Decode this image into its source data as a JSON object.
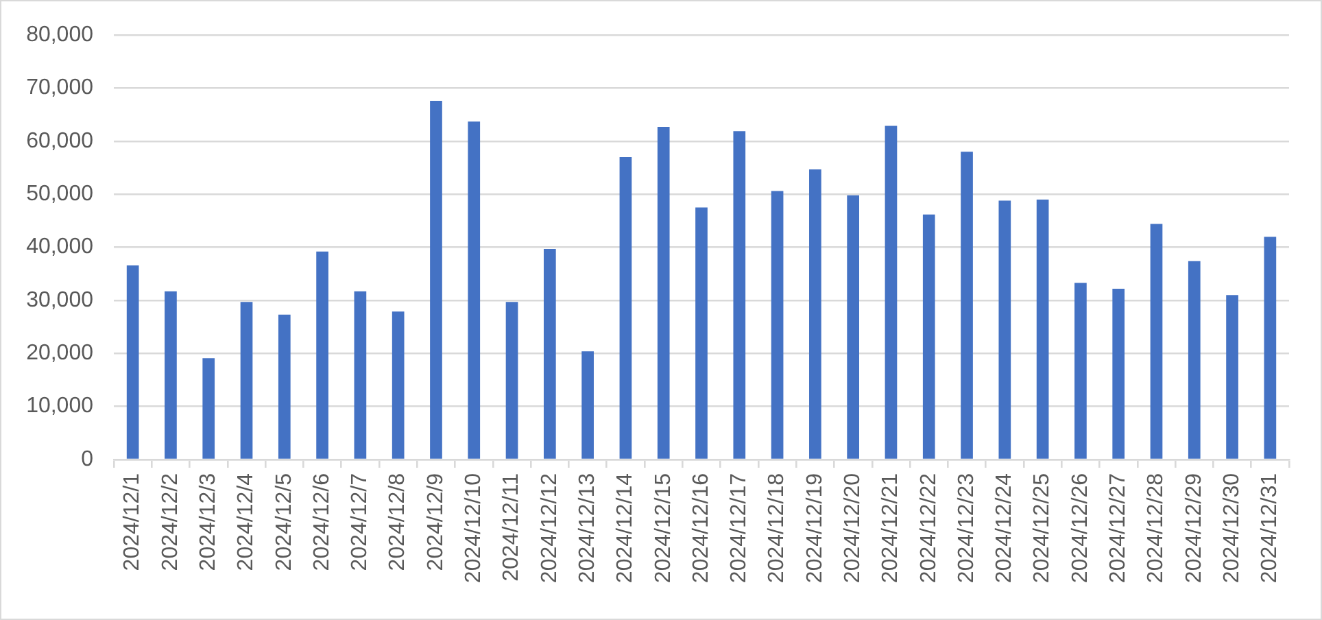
{
  "chart_data": {
    "type": "bar",
    "categories": [
      "2024/12/1",
      "2024/12/2",
      "2024/12/3",
      "2024/12/4",
      "2024/12/5",
      "2024/12/6",
      "2024/12/7",
      "2024/12/8",
      "2024/12/9",
      "2024/12/10",
      "2024/12/11",
      "2024/12/12",
      "2024/12/13",
      "2024/12/14",
      "2024/12/15",
      "2024/12/16",
      "2024/12/17",
      "2024/12/18",
      "2024/12/19",
      "2024/12/20",
      "2024/12/21",
      "2024/12/22",
      "2024/12/23",
      "2024/12/24",
      "2024/12/25",
      "2024/12/26",
      "2024/12/27",
      "2024/12/28",
      "2024/12/29",
      "2024/12/30",
      "2024/12/31"
    ],
    "values": [
      36600,
      31700,
      19100,
      29700,
      27300,
      39200,
      31700,
      27900,
      67600,
      63700,
      29700,
      39700,
      20400,
      57000,
      62700,
      47500,
      61900,
      50600,
      54700,
      49800,
      62900,
      46200,
      58000,
      48800,
      49000,
      33300,
      32200,
      44400,
      37400,
      31000,
      42000
    ],
    "color": "#4472c4",
    "ylim": [
      0,
      80000
    ],
    "yticks": [
      {
        "value": 0,
        "label": "0"
      },
      {
        "value": 10000,
        "label": "10,000"
      },
      {
        "value": 20000,
        "label": "20,000"
      },
      {
        "value": 30000,
        "label": "30,000"
      },
      {
        "value": 40000,
        "label": "40,000"
      },
      {
        "value": 50000,
        "label": "50,000"
      },
      {
        "value": 60000,
        "label": "60,000"
      },
      {
        "value": 70000,
        "label": "70,000"
      },
      {
        "value": 80000,
        "label": "80,000"
      }
    ],
    "grid": "y"
  }
}
